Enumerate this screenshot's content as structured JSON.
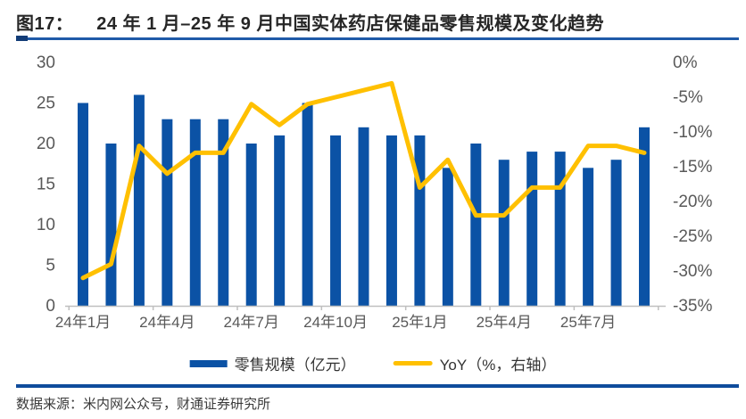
{
  "header": {
    "figure_label": "图17：",
    "title": "24 年 1 月–25 年 9 月中国实体药店保健品零售规模及变化趋势"
  },
  "chart_data": {
    "type": "bar",
    "combo": "bar+line",
    "title": "24 年 1 月–25 年 9 月中国实体药店保健品零售规模及变化趋势",
    "categories": [
      "24年1月",
      "24年2月",
      "24年3月",
      "24年4月",
      "24年5月",
      "24年6月",
      "24年7月",
      "24年8月",
      "24年9月",
      "24年10月",
      "24年11月",
      "24年12月",
      "25年1月",
      "25年2月",
      "25年3月",
      "25年4月",
      "25年5月",
      "25年6月",
      "25年7月",
      "25年8月",
      "25年9月"
    ],
    "x_tick_labels": [
      "24年1月",
      "24年4月",
      "24年7月",
      "24年10月",
      "25年1月",
      "25年4月",
      "25年7月"
    ],
    "x_tick_month_indices": [
      0,
      3,
      6,
      9,
      12,
      15,
      18
    ],
    "series": [
      {
        "name": "零售规模（亿元）",
        "type": "bar",
        "axis": "left",
        "color": "#0b52a5",
        "values": [
          25,
          20,
          26,
          23,
          23,
          23,
          20,
          21,
          25,
          21,
          22,
          21,
          21,
          17,
          20,
          18,
          19,
          19,
          17,
          18,
          22
        ]
      },
      {
        "name": "YoY（%，右轴）",
        "type": "line",
        "axis": "right",
        "color": "#ffc000",
        "values": [
          -31,
          -29,
          -12,
          -16,
          -13,
          -13,
          -6,
          -9,
          -6,
          -5,
          -4,
          -3,
          -18,
          -14,
          -22,
          -22,
          -18,
          -18,
          -12,
          -12,
          -13
        ]
      }
    ],
    "left_axis": {
      "min": 0,
      "max": 30,
      "step": 5,
      "tick_labels": [
        "0",
        "5",
        "10",
        "15",
        "20",
        "25",
        "30"
      ]
    },
    "right_axis": {
      "min": -35,
      "max": 0,
      "step": 5,
      "tick_labels": [
        "0%",
        "-5%",
        "-10%",
        "-15%",
        "-20%",
        "-25%",
        "-30%",
        "-35%"
      ]
    },
    "grid": false,
    "legend_position": "bottom"
  },
  "legend": [
    {
      "label": "零售规模（亿元）",
      "swatch": "bar"
    },
    {
      "label": "YoY（%，右轴）",
      "swatch": "line"
    }
  ],
  "footer": {
    "source": "数据来源：米内网公众号，财通证券研究所"
  },
  "colors": {
    "bar": "#0b52a5",
    "line": "#ffc000",
    "axis_text": "#595959",
    "axis_line": "#bfbfbf",
    "title_text": "#262626",
    "title_underline": "#1f5aa8",
    "title_underline_block": "#123c77",
    "footer_rule": "#0f4c9c",
    "legend_text": "#333333",
    "source_text": "#3a3a3a"
  }
}
